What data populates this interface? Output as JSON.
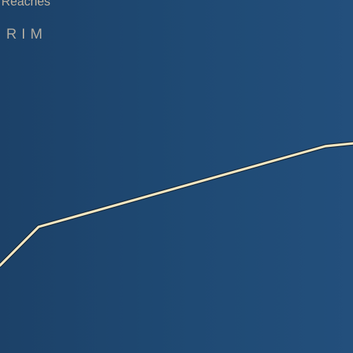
{
  "caption_top": "Reaches",
  "subheading": "RIM",
  "colors": {
    "background_left": "#1c4168",
    "background_right": "#234f7c",
    "line": "#f2e6c2",
    "line_shadow": "#122437",
    "text": "#c7b9a3"
  }
}
